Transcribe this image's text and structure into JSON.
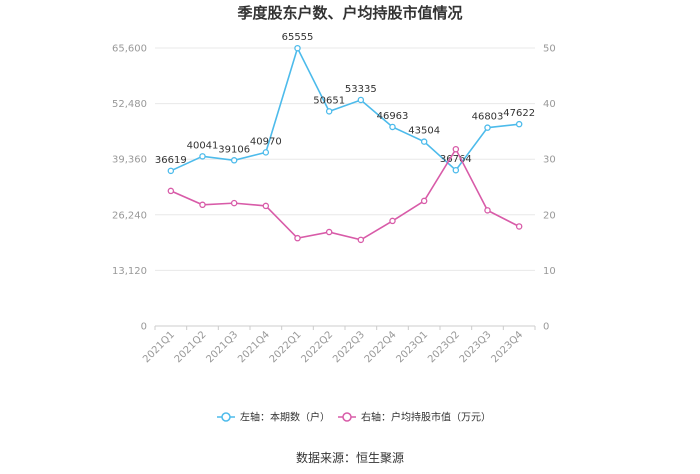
{
  "chart_data": {
    "type": "line",
    "title": "季度股东户数、户均持股市值情况",
    "source": "数据来源：恒生聚源",
    "categories": [
      "2021Q1",
      "2021Q2",
      "2021Q3",
      "2021Q4",
      "2022Q1",
      "2022Q2",
      "2022Q3",
      "2022Q4",
      "2023Q1",
      "2023Q2",
      "2023Q3",
      "2023Q4"
    ],
    "left_axis": {
      "ticks": [
        "0",
        "13,120",
        "26,240",
        "39,360",
        "52,480",
        "65,600"
      ],
      "ylim": [
        0,
        65600
      ]
    },
    "right_axis": {
      "ticks": [
        "0",
        "10",
        "20",
        "30",
        "40",
        "50"
      ],
      "ylim": [
        0,
        50
      ]
    },
    "series": [
      {
        "name": "左轴：本期数（户）",
        "axis": "left",
        "color": "#4dbbeb",
        "values": [
          36619,
          40041,
          39106,
          40970,
          65555,
          50651,
          53335,
          46963,
          43504,
          36764,
          46803,
          47622
        ],
        "labels": [
          "36619",
          "40041",
          "39106",
          "40970",
          "65555",
          "50651",
          "53335",
          "46963",
          "43504",
          "36764",
          "46803",
          "47622"
        ]
      },
      {
        "name": "右轴：户均持股市值（万元）",
        "axis": "right",
        "color": "#d85ba8",
        "values": [
          24.3,
          21.8,
          22.1,
          21.6,
          15.8,
          16.9,
          15.5,
          18.9,
          22.5,
          31.8,
          20.8,
          17.9
        ]
      }
    ],
    "grid": true,
    "legend_position": "bottom"
  }
}
